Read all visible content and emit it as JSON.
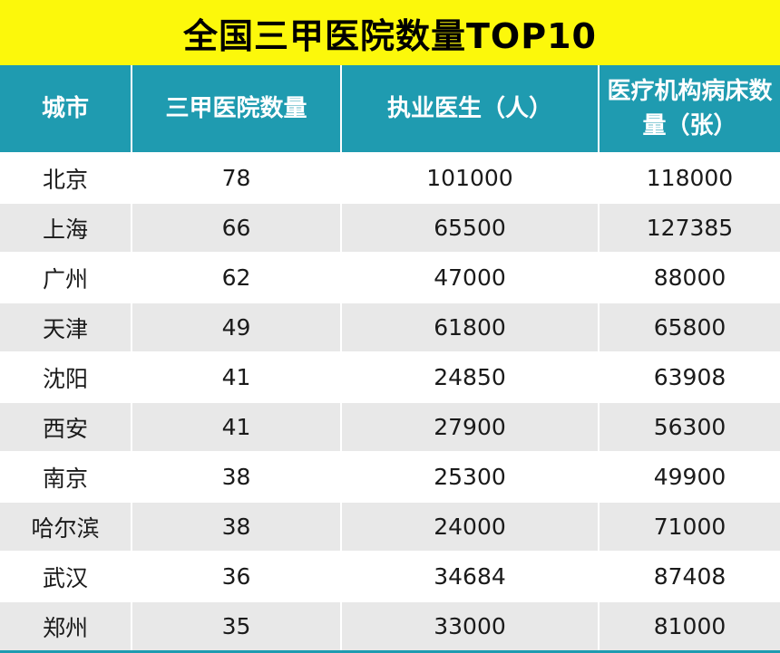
{
  "chart_data": {
    "type": "table",
    "title": "全国三甲医院数量TOP10",
    "columns": [
      "城市",
      "三甲医院数量",
      "执业医生（人）",
      "医疗机构病床数量（张）"
    ],
    "rows": [
      [
        "北京",
        "78",
        "101000",
        "118000"
      ],
      [
        "上海",
        "66",
        "65500",
        "127385"
      ],
      [
        "广州",
        "62",
        "47000",
        "88000"
      ],
      [
        "天津",
        "49",
        "61800",
        "65800"
      ],
      [
        "沈阳",
        "41",
        "24850",
        "63908"
      ],
      [
        "西安",
        "41",
        "27900",
        "56300"
      ],
      [
        "南京",
        "38",
        "25300",
        "49900"
      ],
      [
        "哈尔滨",
        "38",
        "24000",
        "71000"
      ],
      [
        "武汉",
        "36",
        "34684",
        "87408"
      ],
      [
        "郑州",
        "35",
        "33000",
        "81000"
      ]
    ]
  },
  "colors": {
    "title_background": "#fcf80b",
    "header_background": "#1f9bb0",
    "stripe_background": "#e8e8e8"
  }
}
